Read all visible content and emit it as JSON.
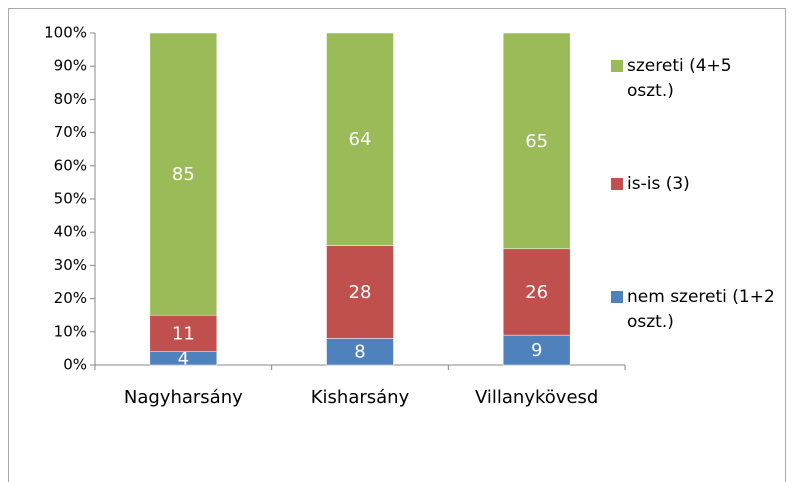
{
  "chart_data": {
    "type": "stacked_bar",
    "categories": [
      "Nagyharsány",
      "Kisharsány",
      "Villanykövesd"
    ],
    "series": [
      {
        "name": "nem szereti (1+2 oszt.)",
        "color": "#4f81bd",
        "values": [
          4,
          8,
          9
        ]
      },
      {
        "name": "is-is (3)",
        "color": "#c0504d",
        "values": [
          11,
          28,
          26
        ]
      },
      {
        "name": "szereti (4+5 oszt.)",
        "color": "#9bbb59",
        "values": [
          85,
          64,
          65
        ]
      }
    ],
    "ylim": [
      0,
      100
    ],
    "yticks": [
      {
        "value": 0,
        "label": "0%"
      },
      {
        "value": 10,
        "label": "10%"
      },
      {
        "value": 20,
        "label": "20%"
      },
      {
        "value": 30,
        "label": "30%"
      },
      {
        "value": 40,
        "label": "40%"
      },
      {
        "value": 50,
        "label": "50%"
      },
      {
        "value": 60,
        "label": "60%"
      },
      {
        "value": 70,
        "label": "70%"
      },
      {
        "value": 80,
        "label": "80%"
      },
      {
        "value": 90,
        "label": "90%"
      },
      {
        "value": 100,
        "label": "100%"
      }
    ],
    "legend": "right"
  }
}
